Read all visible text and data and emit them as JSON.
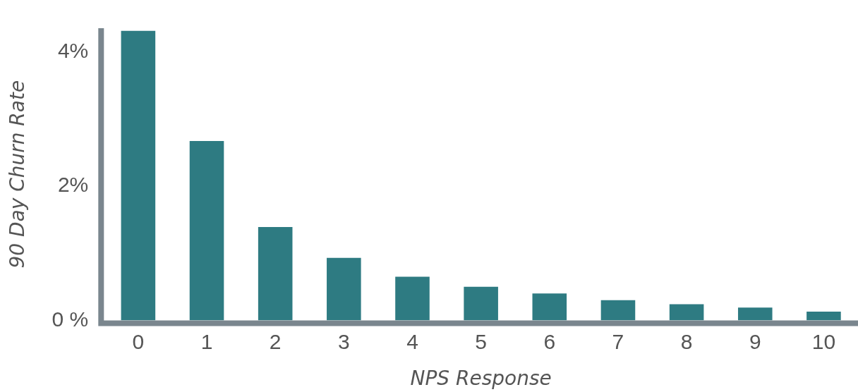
{
  "chart_data": {
    "type": "bar",
    "xlabel": "NPS Response",
    "ylabel": "90 Day Churn Rate",
    "categories": [
      "0",
      "1",
      "2",
      "3",
      "4",
      "5",
      "6",
      "7",
      "8",
      "9",
      "10"
    ],
    "values": [
      4.31,
      2.67,
      1.39,
      0.93,
      0.65,
      0.5,
      0.4,
      0.3,
      0.24,
      0.19,
      0.13
    ],
    "color": "#2e7b82",
    "ylim": [
      0,
      4.35
    ],
    "yticks": [
      {
        "value": 0,
        "label": "0 %"
      },
      {
        "value": 2,
        "label": "2%"
      },
      {
        "value": 4,
        "label": "4%"
      }
    ],
    "grid": false,
    "legend": false
  }
}
